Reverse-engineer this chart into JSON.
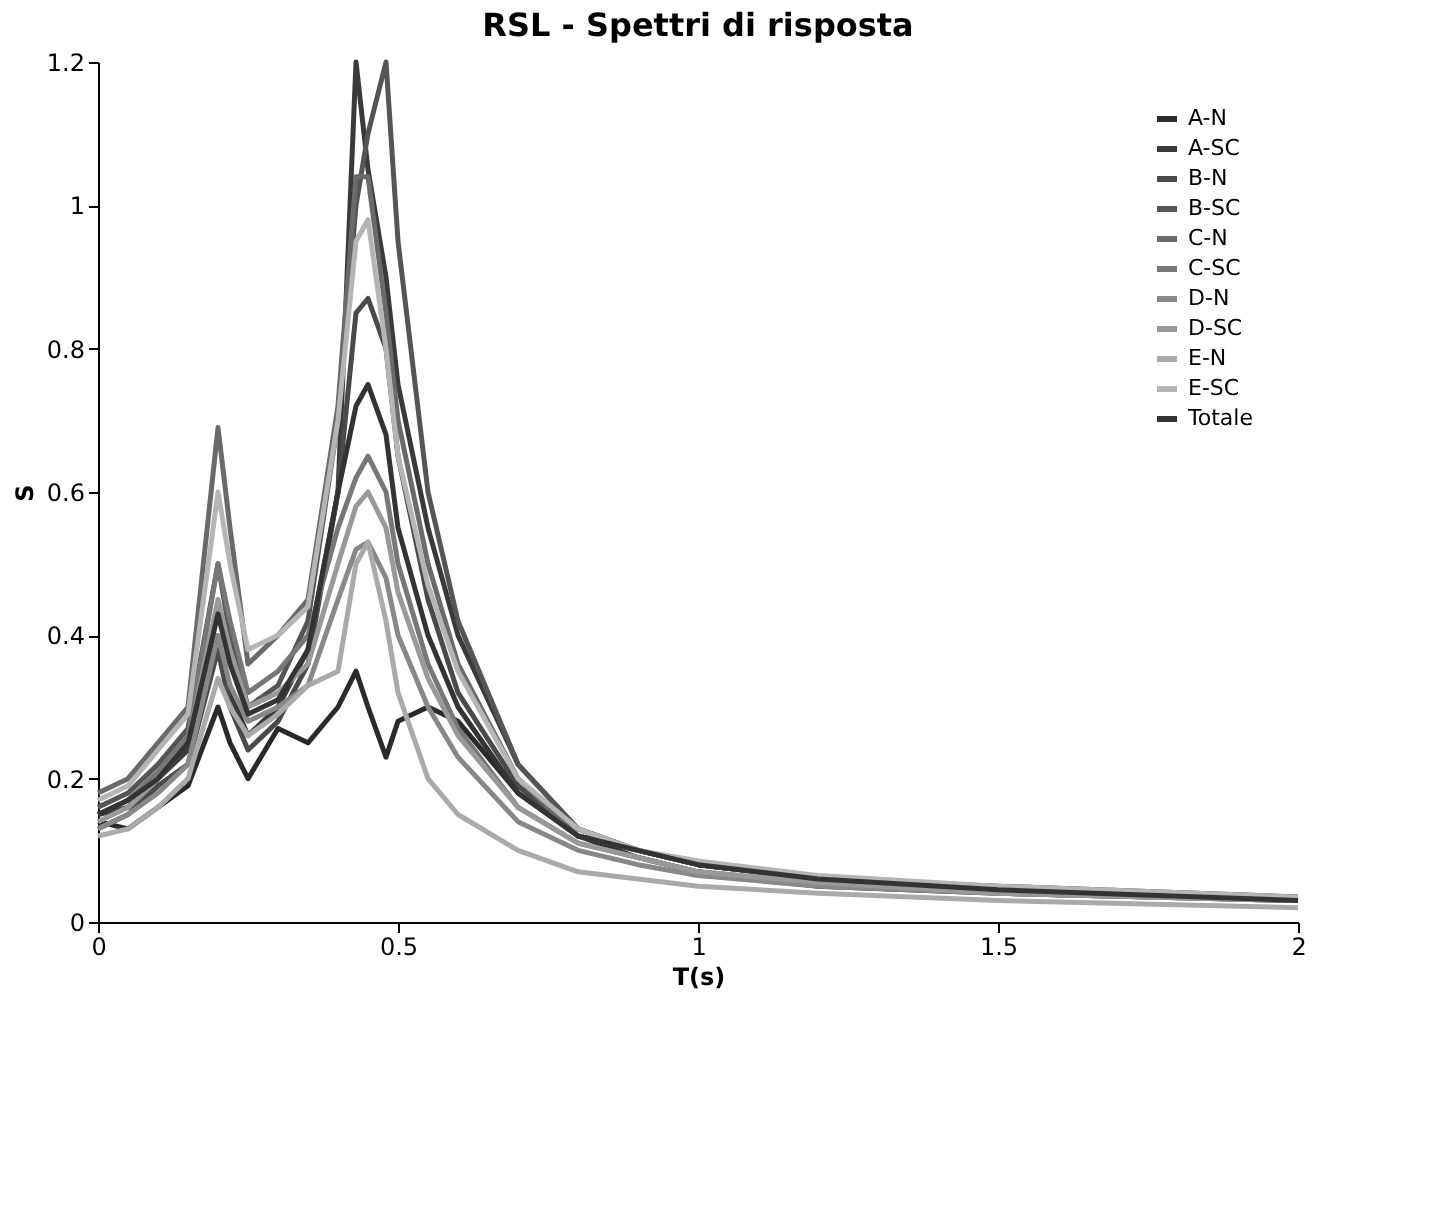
{
  "chart_data": {
    "type": "line",
    "title": "RSL - Spettri di risposta",
    "xlabel": "T(s)",
    "ylabel": "S",
    "legend": "top right",
    "grid": false,
    "marker": "none",
    "line_style": "solid",
    "xlim": [
      0,
      2
    ],
    "xticks": [
      0,
      0.5,
      1,
      1.5,
      2
    ],
    "ylim": [
      0,
      1.2
    ],
    "yticks": [
      0,
      0.2,
      0.4,
      0.6,
      0.8,
      1,
      1.2
    ],
    "x": [
      0,
      0.05,
      0.1,
      0.15,
      0.2,
      0.22,
      0.25,
      0.3,
      0.35,
      0.4,
      0.43,
      0.45,
      0.48,
      0.5,
      0.55,
      0.6,
      0.7,
      0.8,
      0.9,
      1.0,
      1.2,
      1.5,
      2.0
    ],
    "series": [
      {
        "name": "A-N",
        "color": "#2a2a2a",
        "values": [
          0.14,
          0.13,
          0.16,
          0.19,
          0.3,
          0.25,
          0.2,
          0.27,
          0.25,
          0.3,
          0.35,
          0.3,
          0.23,
          0.28,
          0.3,
          0.28,
          0.18,
          0.12,
          0.09,
          0.07,
          0.05,
          0.04,
          0.03
        ]
      },
      {
        "name": "A-SC",
        "color": "#3a3a3a",
        "values": [
          0.15,
          0.16,
          0.2,
          0.24,
          0.38,
          0.32,
          0.26,
          0.3,
          0.38,
          0.6,
          1.2,
          1.05,
          0.9,
          0.75,
          0.55,
          0.4,
          0.22,
          0.13,
          0.1,
          0.08,
          0.06,
          0.05,
          0.035
        ]
      },
      {
        "name": "B-N",
        "color": "#4a4a4a",
        "values": [
          0.13,
          0.15,
          0.19,
          0.22,
          0.38,
          0.3,
          0.24,
          0.28,
          0.36,
          0.6,
          0.85,
          0.87,
          0.8,
          0.65,
          0.45,
          0.32,
          0.19,
          0.12,
          0.1,
          0.08,
          0.06,
          0.045,
          0.03
        ]
      },
      {
        "name": "B-SC",
        "color": "#555555",
        "values": [
          0.16,
          0.18,
          0.22,
          0.27,
          0.5,
          0.4,
          0.3,
          0.33,
          0.42,
          0.7,
          1.0,
          1.1,
          1.2,
          0.95,
          0.6,
          0.42,
          0.22,
          0.13,
          0.1,
          0.08,
          0.06,
          0.045,
          0.03
        ]
      },
      {
        "name": "C-N",
        "color": "#6a6a6a",
        "values": [
          0.18,
          0.2,
          0.25,
          0.3,
          0.69,
          0.55,
          0.36,
          0.4,
          0.45,
          0.72,
          1.04,
          1.04,
          0.85,
          0.7,
          0.5,
          0.36,
          0.2,
          0.12,
          0.1,
          0.08,
          0.06,
          0.045,
          0.03
        ]
      },
      {
        "name": "C-SC",
        "color": "#777777",
        "values": [
          0.15,
          0.17,
          0.21,
          0.26,
          0.5,
          0.42,
          0.32,
          0.35,
          0.4,
          0.55,
          0.62,
          0.65,
          0.6,
          0.5,
          0.36,
          0.27,
          0.16,
          0.11,
          0.09,
          0.07,
          0.055,
          0.04,
          0.03
        ]
      },
      {
        "name": "D-N",
        "color": "#888888",
        "values": [
          0.13,
          0.15,
          0.18,
          0.22,
          0.4,
          0.33,
          0.28,
          0.3,
          0.33,
          0.45,
          0.52,
          0.53,
          0.48,
          0.4,
          0.3,
          0.23,
          0.14,
          0.1,
          0.08,
          0.065,
          0.05,
          0.04,
          0.03
        ]
      },
      {
        "name": "D-SC",
        "color": "#999999",
        "values": [
          0.14,
          0.16,
          0.2,
          0.25,
          0.45,
          0.38,
          0.3,
          0.32,
          0.36,
          0.5,
          0.58,
          0.6,
          0.55,
          0.46,
          0.34,
          0.26,
          0.16,
          0.11,
          0.09,
          0.07,
          0.055,
          0.04,
          0.03
        ]
      },
      {
        "name": "E-N",
        "color": "#aaaaaa",
        "values": [
          0.12,
          0.13,
          0.16,
          0.2,
          0.34,
          0.3,
          0.26,
          0.29,
          0.33,
          0.35,
          0.5,
          0.53,
          0.42,
          0.32,
          0.2,
          0.15,
          0.1,
          0.07,
          0.06,
          0.05,
          0.04,
          0.03,
          0.02
        ]
      },
      {
        "name": "E-SC",
        "color": "#b5b5b5",
        "values": [
          0.17,
          0.19,
          0.24,
          0.29,
          0.6,
          0.5,
          0.38,
          0.4,
          0.44,
          0.7,
          0.95,
          0.98,
          0.8,
          0.65,
          0.47,
          0.35,
          0.2,
          0.13,
          0.1,
          0.085,
          0.065,
          0.05,
          0.035
        ]
      },
      {
        "name": "Totale",
        "color": "#333333",
        "values": [
          0.15,
          0.17,
          0.2,
          0.25,
          0.43,
          0.36,
          0.29,
          0.31,
          0.38,
          0.6,
          0.72,
          0.75,
          0.68,
          0.55,
          0.4,
          0.3,
          0.18,
          0.12,
          0.1,
          0.08,
          0.06,
          0.045,
          0.03
        ]
      }
    ]
  }
}
